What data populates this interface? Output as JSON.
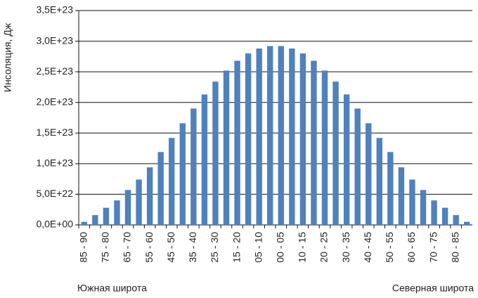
{
  "chart_data": {
    "type": "bar",
    "y_label": "Инсоляция, Дж",
    "x_label_left": "Южная широта",
    "x_label_right": "Северная широта",
    "categories": [
      "85 - 90",
      null,
      "75 - 80",
      null,
      "65 - 70",
      null,
      "55 - 60",
      null,
      "45 - 50",
      null,
      "35 - 40",
      null,
      "25 - 30",
      null,
      "15 - 20",
      null,
      "05 - 10",
      null,
      "00 - 05",
      null,
      "10 - 15",
      null,
      "20 - 25",
      null,
      "30 - 35",
      null,
      "40 - 45",
      null,
      "50 - 55",
      null,
      "60 - 65",
      null,
      "70 - 75",
      null,
      "80 - 85",
      null
    ],
    "values": [
      5e+21,
      1.6e+22,
      2.8e+22,
      4e+22,
      5.7e+22,
      7.4e+22,
      9.4e+22,
      1.19e+23,
      1.42e+23,
      1.66e+23,
      1.9e+23,
      2.13e+23,
      2.34e+23,
      2.52e+23,
      2.68e+23,
      2.8e+23,
      2.88e+23,
      2.92e+23,
      2.92e+23,
      2.88e+23,
      2.8e+23,
      2.68e+23,
      2.52e+23,
      2.34e+23,
      2.13e+23,
      1.9e+23,
      1.66e+23,
      1.42e+23,
      1.19e+23,
      9.4e+22,
      7.4e+22,
      5.7e+22,
      4e+22,
      2.8e+22,
      1.6e+22,
      5e+21
    ],
    "color": "#4f81bd",
    "ylim": [
      0,
      3.5e+23
    ],
    "yticks": [
      {
        "value": 0,
        "label": "0,0E+00"
      },
      {
        "value": 5e+22,
        "label": "5,0E+22"
      },
      {
        "value": 1e+23,
        "label": "1,0E+23"
      },
      {
        "value": 1.5e+23,
        "label": "1,5E+23"
      },
      {
        "value": 2e+23,
        "label": "2,0E+23"
      },
      {
        "value": 2.5e+23,
        "label": "2,5E+23"
      },
      {
        "value": 3e+23,
        "label": "3,0E+23"
      },
      {
        "value": 3.5e+23,
        "label": "3,5E+23"
      }
    ],
    "grid": true
  }
}
